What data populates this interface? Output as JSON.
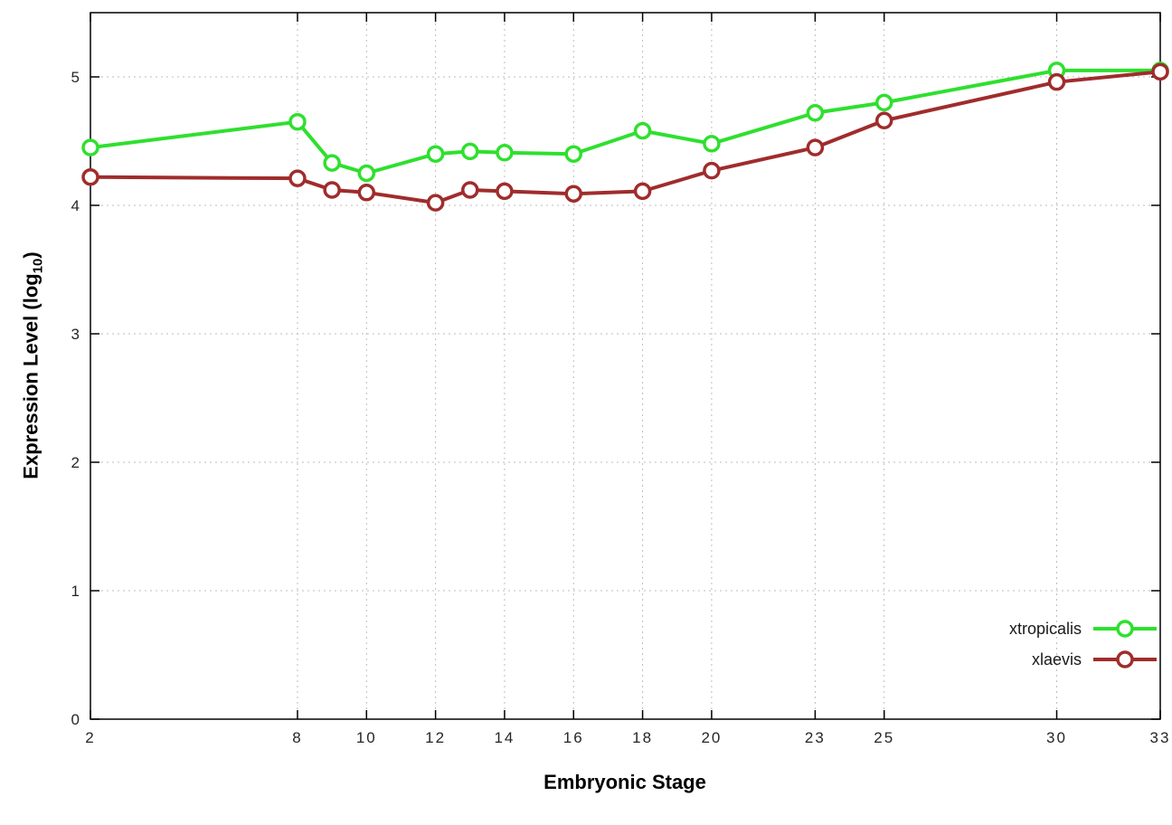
{
  "chart_data": {
    "type": "line",
    "title": "",
    "xlabel": "Embryonic Stage",
    "ylabel": "Expression Level (log10)",
    "ylabel_parts": {
      "prefix": "Expression Level (log",
      "sub": "10",
      "suffix": ")"
    },
    "x": [
      2,
      8,
      9,
      10,
      12,
      13,
      14,
      16,
      18,
      20,
      23,
      25,
      30,
      33
    ],
    "xticks": [
      2,
      8,
      10,
      12,
      14,
      16,
      18,
      20,
      23,
      25,
      30,
      33
    ],
    "yticks": [
      0,
      1,
      2,
      3,
      4,
      5
    ],
    "xlim": [
      2,
      33
    ],
    "ylim": [
      0,
      5.5
    ],
    "grid": true,
    "legend_position": "bottom-right",
    "marker": "open-circle",
    "series": [
      {
        "name": "xtropicalis",
        "color": "#2ee02e",
        "values": [
          4.45,
          4.65,
          4.33,
          4.25,
          4.4,
          4.42,
          4.41,
          4.4,
          4.58,
          4.48,
          4.72,
          4.8,
          5.05,
          5.05
        ]
      },
      {
        "name": "xlaevis",
        "color": "#a02c2c",
        "values": [
          4.22,
          4.21,
          4.12,
          4.1,
          4.02,
          4.12,
          4.11,
          4.09,
          4.11,
          4.27,
          4.45,
          4.66,
          4.96,
          5.04
        ]
      }
    ]
  }
}
